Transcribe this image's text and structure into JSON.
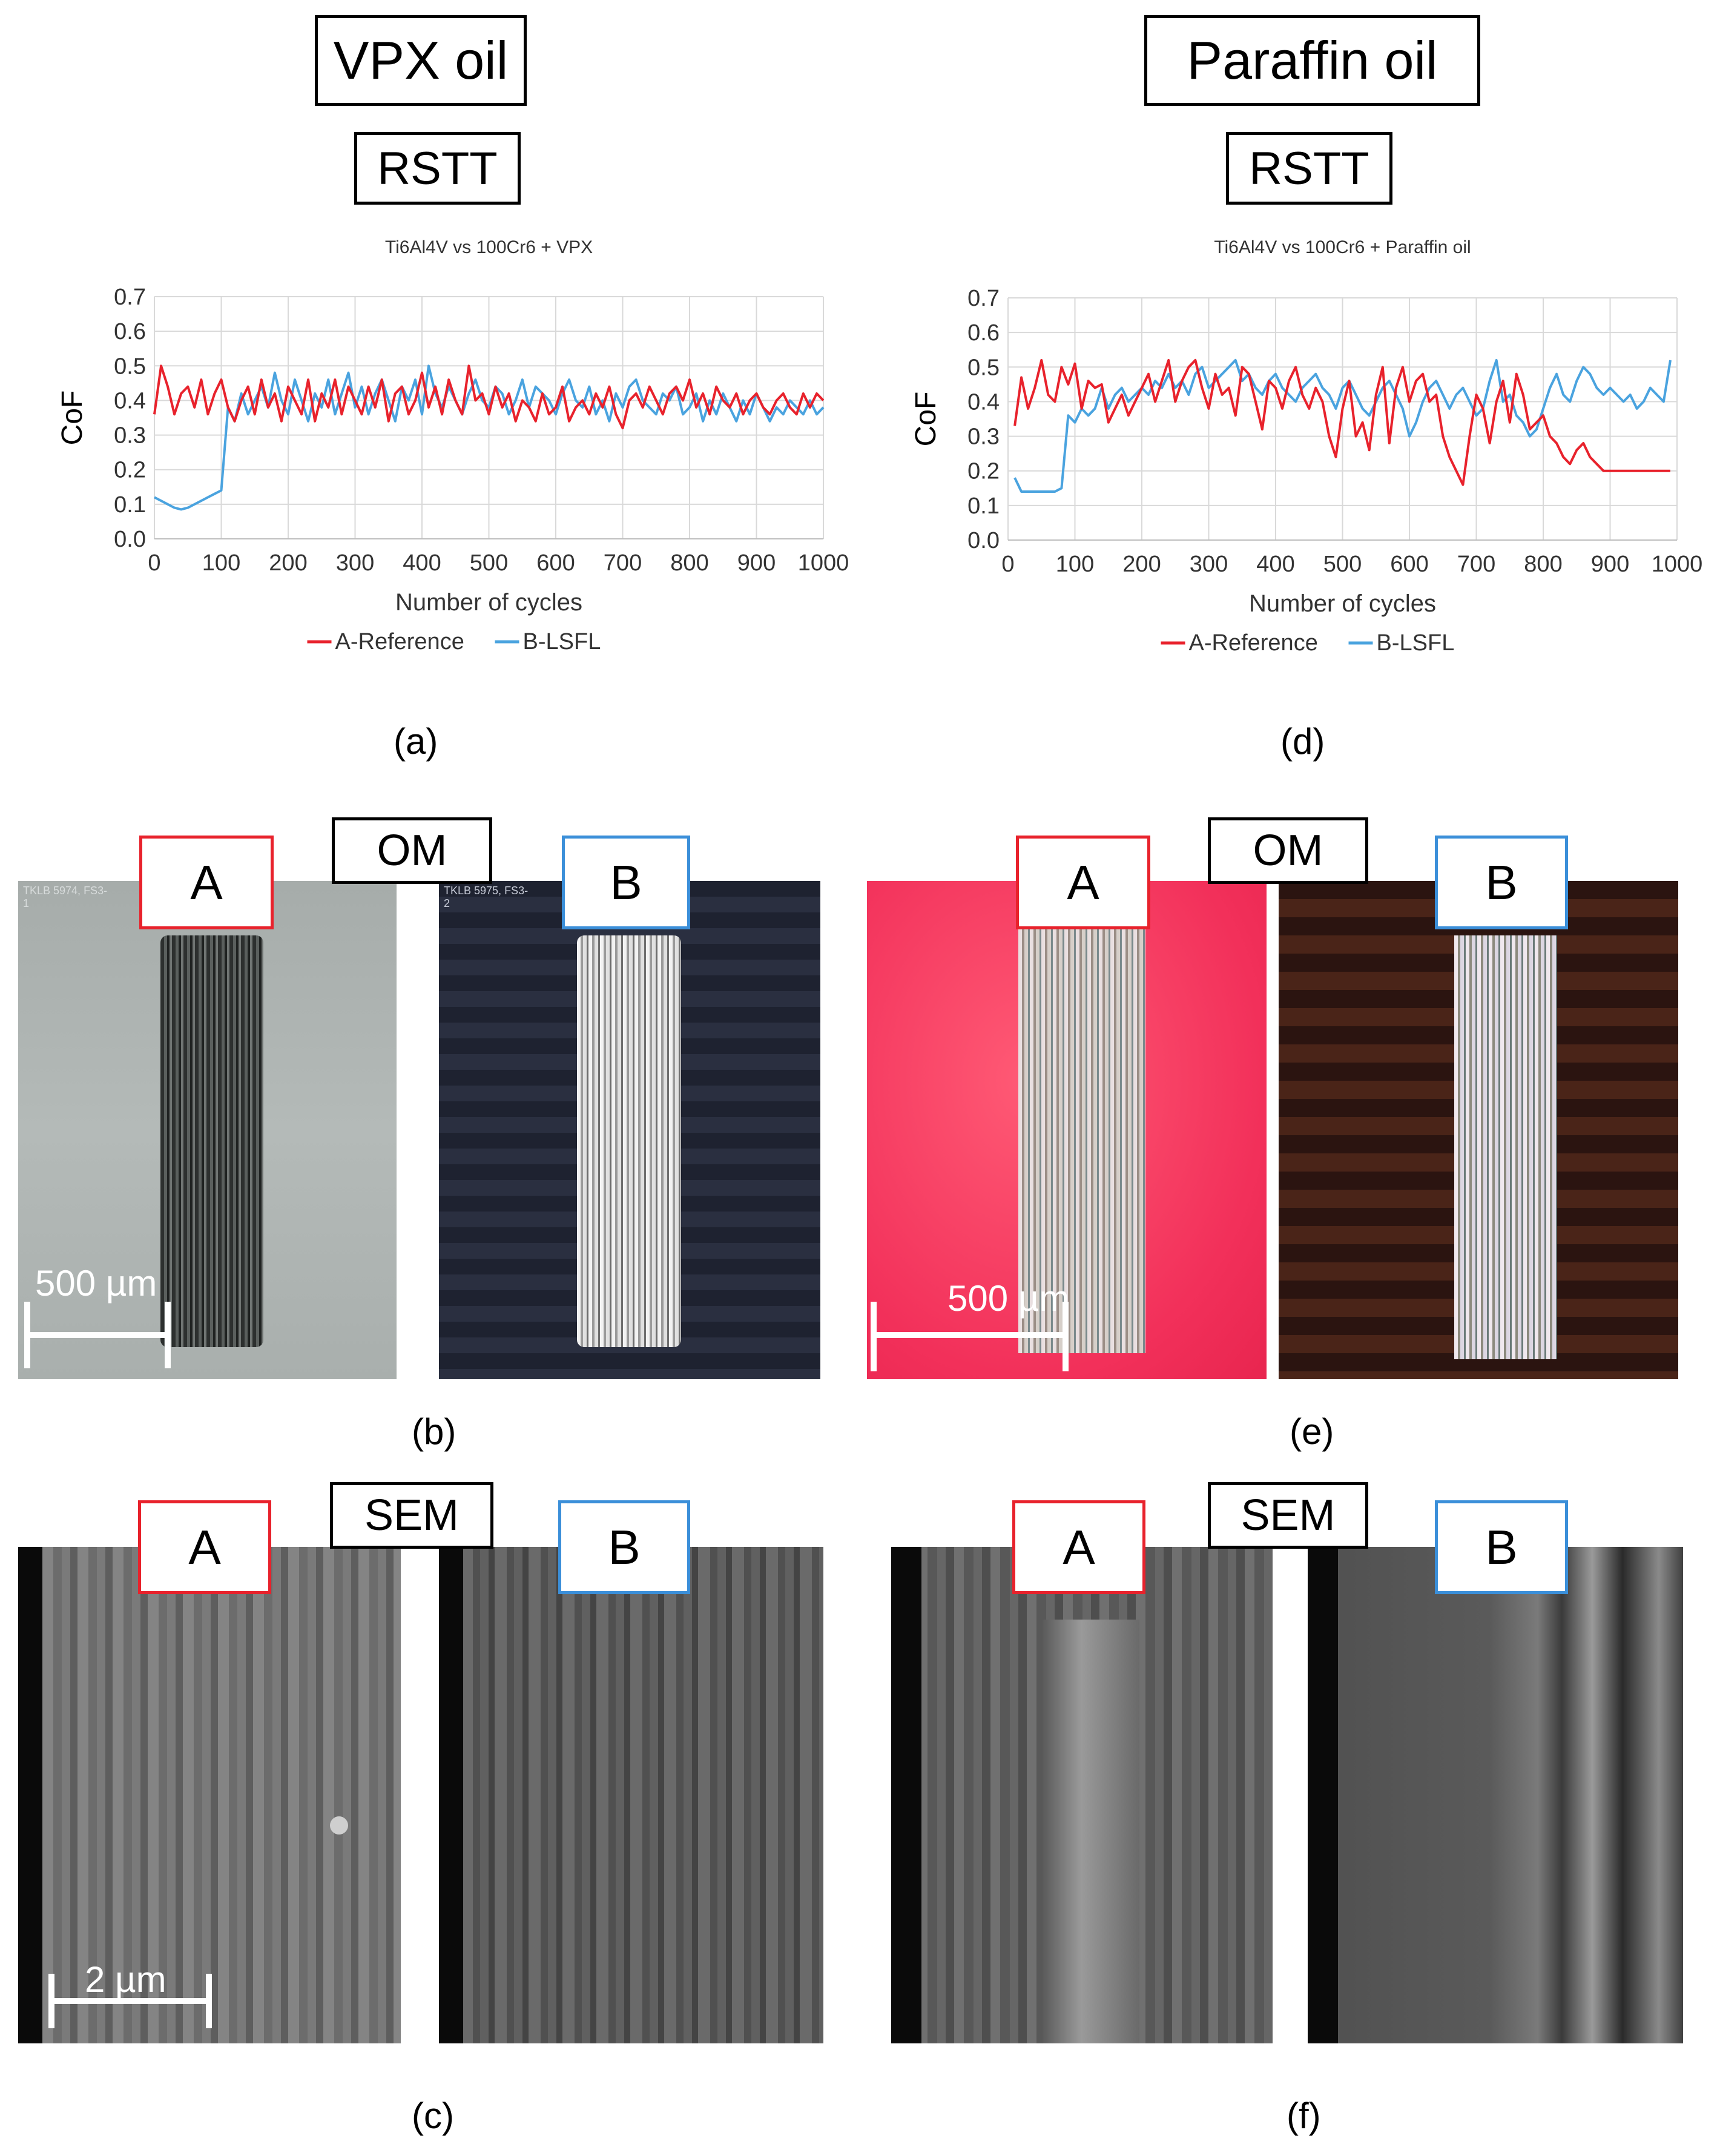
{
  "headers": {
    "left_oil": "VPX oil",
    "right_oil": "Paraffin oil",
    "left_test": "RSTT",
    "right_test": "RSTT",
    "om_left": "OM",
    "om_right": "OM",
    "sem_left": "SEM",
    "sem_right": "SEM"
  },
  "sample_labels": {
    "a": "A",
    "b": "B"
  },
  "panel_letters": {
    "a": "(a)",
    "b": "(b)",
    "c": "(c)",
    "d": "(d)",
    "e": "(e)",
    "f": "(f)"
  },
  "scale_bars": {
    "om_b": "500 µm",
    "om_e": "500 µm",
    "sem_c": "2 µm"
  },
  "micrograph_captions": {
    "om_a": "TKLB 5974, FS3-1",
    "om_b": "TKLB 5975, FS3-2"
  },
  "colors": {
    "reference": "#e8222c",
    "lsfl": "#4aa3df",
    "box_a": "#e8222c",
    "box_b": "#3b8fd9"
  },
  "chart_data": [
    {
      "type": "line",
      "title": "Ti6Al4V vs 100Cr6 + VPX",
      "xlabel": "Number of cycles",
      "ylabel": "CoF",
      "xlim": [
        0,
        1000
      ],
      "ylim": [
        0,
        0.7
      ],
      "xticks": [
        "0",
        "100",
        "200",
        "300",
        "400",
        "500",
        "600",
        "700",
        "800",
        "900",
        "1000"
      ],
      "yticks": [
        "0.0",
        "0.1",
        "0.2",
        "0.3",
        "0.4",
        "0.5",
        "0.6",
        "0.7"
      ],
      "grid": true,
      "legend": "bottom",
      "series": [
        {
          "name": "A-Reference",
          "x": [
            0,
            10,
            20,
            30,
            40,
            50,
            60,
            70,
            80,
            90,
            100,
            110,
            120,
            130,
            140,
            150,
            160,
            170,
            180,
            190,
            200,
            210,
            220,
            230,
            240,
            250,
            260,
            270,
            280,
            290,
            300,
            310,
            320,
            330,
            340,
            350,
            360,
            370,
            380,
            390,
            400,
            410,
            420,
            430,
            440,
            450,
            460,
            470,
            480,
            490,
            500,
            510,
            520,
            530,
            540,
            550,
            560,
            570,
            580,
            590,
            600,
            610,
            620,
            630,
            640,
            650,
            660,
            670,
            680,
            690,
            700,
            710,
            720,
            730,
            740,
            750,
            760,
            770,
            780,
            790,
            800,
            810,
            820,
            830,
            840,
            850,
            860,
            870,
            880,
            890,
            900,
            910,
            920,
            930,
            940,
            950,
            960,
            970,
            980,
            990,
            1000
          ],
          "y": [
            0.36,
            0.5,
            0.44,
            0.36,
            0.42,
            0.44,
            0.38,
            0.46,
            0.36,
            0.42,
            0.46,
            0.38,
            0.34,
            0.4,
            0.44,
            0.36,
            0.46,
            0.38,
            0.42,
            0.34,
            0.44,
            0.4,
            0.36,
            0.46,
            0.34,
            0.42,
            0.38,
            0.46,
            0.36,
            0.44,
            0.4,
            0.36,
            0.44,
            0.38,
            0.46,
            0.34,
            0.42,
            0.44,
            0.36,
            0.4,
            0.48,
            0.38,
            0.44,
            0.36,
            0.46,
            0.4,
            0.36,
            0.5,
            0.4,
            0.42,
            0.36,
            0.44,
            0.38,
            0.42,
            0.34,
            0.4,
            0.38,
            0.34,
            0.42,
            0.36,
            0.38,
            0.44,
            0.34,
            0.38,
            0.4,
            0.36,
            0.42,
            0.38,
            0.44,
            0.36,
            0.32,
            0.4,
            0.42,
            0.38,
            0.44,
            0.4,
            0.36,
            0.42,
            0.44,
            0.4,
            0.46,
            0.38,
            0.42,
            0.36,
            0.44,
            0.4,
            0.38,
            0.42,
            0.36,
            0.4,
            0.42,
            0.38,
            0.36,
            0.4,
            0.42,
            0.38,
            0.36,
            0.42,
            0.38,
            0.42,
            0.4
          ]
        },
        {
          "name": "B-LSFL",
          "x": [
            0,
            10,
            20,
            30,
            40,
            50,
            60,
            70,
            80,
            90,
            100,
            110,
            120,
            130,
            140,
            150,
            160,
            170,
            180,
            190,
            200,
            210,
            220,
            230,
            240,
            250,
            260,
            270,
            280,
            290,
            300,
            310,
            320,
            330,
            340,
            350,
            360,
            370,
            380,
            390,
            400,
            410,
            420,
            430,
            440,
            450,
            460,
            470,
            480,
            490,
            500,
            510,
            520,
            530,
            540,
            550,
            560,
            570,
            580,
            590,
            600,
            610,
            620,
            630,
            640,
            650,
            660,
            670,
            680,
            690,
            700,
            710,
            720,
            730,
            740,
            750,
            760,
            770,
            780,
            790,
            800,
            810,
            820,
            830,
            840,
            850,
            860,
            870,
            880,
            890,
            900,
            910,
            920,
            930,
            940,
            950,
            960,
            970,
            980,
            990,
            1000
          ],
          "y": [
            0.12,
            0.11,
            0.1,
            0.09,
            0.085,
            0.09,
            0.1,
            0.11,
            0.12,
            0.13,
            0.14,
            0.38,
            0.34,
            0.42,
            0.36,
            0.4,
            0.44,
            0.38,
            0.48,
            0.4,
            0.36,
            0.46,
            0.4,
            0.34,
            0.42,
            0.38,
            0.46,
            0.36,
            0.42,
            0.48,
            0.38,
            0.44,
            0.36,
            0.42,
            0.46,
            0.4,
            0.34,
            0.44,
            0.4,
            0.46,
            0.36,
            0.5,
            0.42,
            0.38,
            0.44,
            0.4,
            0.36,
            0.42,
            0.46,
            0.4,
            0.38,
            0.44,
            0.42,
            0.36,
            0.4,
            0.46,
            0.38,
            0.44,
            0.42,
            0.4,
            0.36,
            0.42,
            0.46,
            0.4,
            0.38,
            0.44,
            0.36,
            0.4,
            0.34,
            0.42,
            0.38,
            0.44,
            0.46,
            0.4,
            0.38,
            0.36,
            0.42,
            0.4,
            0.44,
            0.36,
            0.38,
            0.42,
            0.34,
            0.4,
            0.36,
            0.42,
            0.38,
            0.34,
            0.4,
            0.36,
            0.42,
            0.38,
            0.34,
            0.38,
            0.36,
            0.4,
            0.38,
            0.36,
            0.4,
            0.36,
            0.38
          ]
        }
      ]
    },
    {
      "type": "line",
      "title": "Ti6Al4V vs 100Cr6 + Paraffin oil",
      "xlabel": "Number of cycles",
      "ylabel": "CoF",
      "xlim": [
        0,
        1000
      ],
      "ylim": [
        0,
        0.7
      ],
      "xticks": [
        "0",
        "100",
        "200",
        "300",
        "400",
        "500",
        "600",
        "700",
        "800",
        "900",
        "1000"
      ],
      "yticks": [
        "0.0",
        "0.1",
        "0.2",
        "0.3",
        "0.4",
        "0.5",
        "0.6",
        "0.7"
      ],
      "grid": true,
      "legend": "bottom",
      "series": [
        {
          "name": "A-Reference",
          "x": [
            10,
            20,
            30,
            40,
            50,
            60,
            70,
            80,
            90,
            100,
            110,
            120,
            130,
            140,
            150,
            160,
            170,
            180,
            190,
            200,
            210,
            220,
            230,
            240,
            250,
            260,
            270,
            280,
            290,
            300,
            310,
            320,
            330,
            340,
            350,
            360,
            370,
            380,
            390,
            400,
            410,
            420,
            430,
            440,
            450,
            460,
            470,
            480,
            490,
            500,
            510,
            520,
            530,
            540,
            550,
            560,
            570,
            580,
            590,
            600,
            610,
            620,
            630,
            640,
            650,
            660,
            670,
            680,
            690,
            700,
            710,
            720,
            730,
            740,
            750,
            760,
            770,
            780,
            790,
            800,
            810,
            820,
            830,
            840,
            850,
            860,
            870,
            880,
            890,
            900,
            910,
            920,
            930,
            940,
            950,
            960,
            970,
            980,
            990
          ],
          "y": [
            0.33,
            0.47,
            0.38,
            0.44,
            0.52,
            0.42,
            0.4,
            0.5,
            0.45,
            0.51,
            0.38,
            0.46,
            0.44,
            0.45,
            0.34,
            0.38,
            0.42,
            0.36,
            0.4,
            0.44,
            0.48,
            0.4,
            0.46,
            0.52,
            0.4,
            0.46,
            0.5,
            0.52,
            0.44,
            0.38,
            0.48,
            0.42,
            0.44,
            0.36,
            0.5,
            0.48,
            0.4,
            0.32,
            0.46,
            0.44,
            0.38,
            0.46,
            0.5,
            0.42,
            0.38,
            0.44,
            0.4,
            0.3,
            0.24,
            0.38,
            0.46,
            0.3,
            0.34,
            0.26,
            0.42,
            0.5,
            0.28,
            0.44,
            0.5,
            0.4,
            0.46,
            0.48,
            0.4,
            0.42,
            0.3,
            0.24,
            0.2,
            0.16,
            0.3,
            0.42,
            0.38,
            0.28,
            0.4,
            0.46,
            0.34,
            0.48,
            0.42,
            0.32,
            0.34,
            0.36,
            0.3,
            0.28,
            0.24,
            0.22,
            0.26,
            0.28,
            0.24,
            0.22,
            0.2,
            0.2,
            0.2,
            0.2,
            0.2,
            0.2,
            0.2,
            0.2,
            0.2,
            0.2,
            0.2
          ]
        },
        {
          "name": "B-LSFL",
          "x": [
            10,
            20,
            30,
            40,
            50,
            60,
            70,
            80,
            90,
            100,
            110,
            120,
            130,
            140,
            150,
            160,
            170,
            180,
            190,
            200,
            210,
            220,
            230,
            240,
            250,
            260,
            270,
            280,
            290,
            300,
            310,
            320,
            330,
            340,
            350,
            360,
            370,
            380,
            390,
            400,
            410,
            420,
            430,
            440,
            450,
            460,
            470,
            480,
            490,
            500,
            510,
            520,
            530,
            540,
            550,
            560,
            570,
            580,
            590,
            600,
            610,
            620,
            630,
            640,
            650,
            660,
            670,
            680,
            690,
            700,
            710,
            720,
            730,
            740,
            750,
            760,
            770,
            780,
            790,
            800,
            810,
            820,
            830,
            840,
            850,
            860,
            870,
            880,
            890,
            900,
            910,
            920,
            930,
            940,
            950,
            960,
            970,
            980,
            990
          ],
          "y": [
            0.18,
            0.14,
            0.14,
            0.14,
            0.14,
            0.14,
            0.14,
            0.15,
            0.36,
            0.34,
            0.38,
            0.36,
            0.38,
            0.44,
            0.38,
            0.42,
            0.44,
            0.4,
            0.42,
            0.44,
            0.42,
            0.46,
            0.44,
            0.48,
            0.44,
            0.46,
            0.42,
            0.48,
            0.5,
            0.44,
            0.46,
            0.48,
            0.5,
            0.52,
            0.46,
            0.48,
            0.44,
            0.42,
            0.46,
            0.48,
            0.44,
            0.42,
            0.4,
            0.44,
            0.46,
            0.48,
            0.44,
            0.42,
            0.38,
            0.44,
            0.46,
            0.42,
            0.38,
            0.36,
            0.4,
            0.44,
            0.46,
            0.42,
            0.38,
            0.3,
            0.34,
            0.4,
            0.44,
            0.46,
            0.42,
            0.38,
            0.42,
            0.44,
            0.4,
            0.36,
            0.38,
            0.46,
            0.52,
            0.4,
            0.42,
            0.36,
            0.34,
            0.3,
            0.32,
            0.38,
            0.44,
            0.48,
            0.42,
            0.4,
            0.46,
            0.5,
            0.48,
            0.44,
            0.42,
            0.44,
            0.42,
            0.4,
            0.42,
            0.38,
            0.4,
            0.44,
            0.42,
            0.4,
            0.52
          ]
        }
      ]
    }
  ]
}
